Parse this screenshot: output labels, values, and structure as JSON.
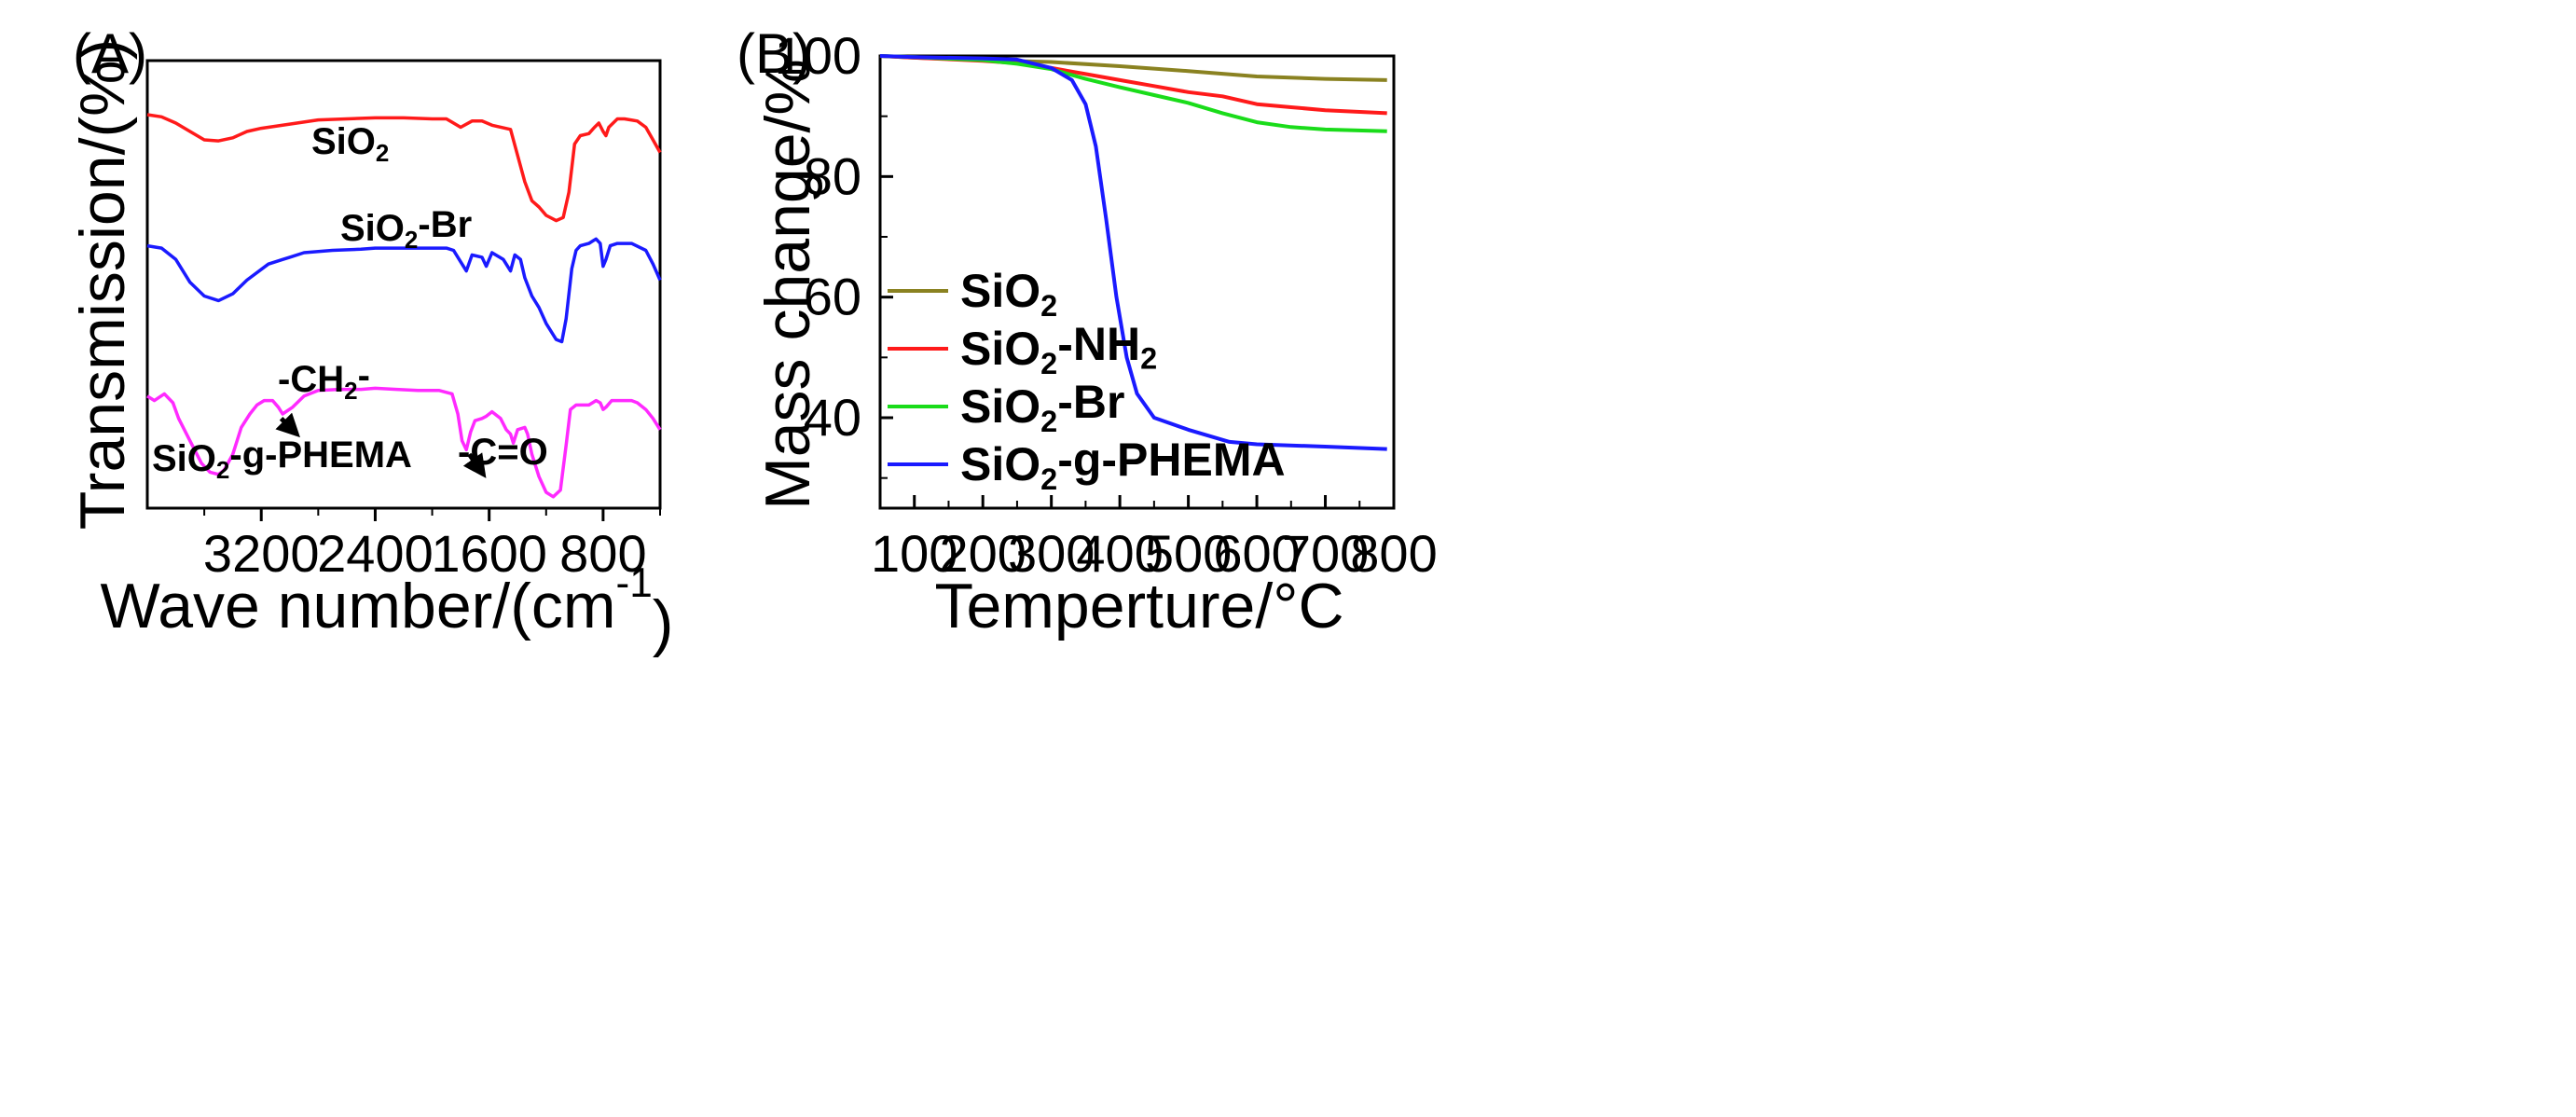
{
  "chart_data": [
    {
      "panel": "(A)",
      "type": "line",
      "xlabel_prefix": "Wave number/(cm",
      "xlabel_sup": "-1",
      "xlabel_suffix": ")",
      "ylabel": "Transmission/(%)",
      "x_reversed": true,
      "xlim": [
        4000,
        400
      ],
      "xticks": [
        3200,
        2400,
        1600,
        800
      ],
      "ylim": [
        0,
        100
      ],
      "series": [
        {
          "name": "SiO2",
          "label_main": "SiO",
          "label_sub": "2",
          "label_tail": "",
          "color": "#ff1a1a",
          "points": [
            [
              4000,
              92
            ],
            [
              3900,
              91
            ],
            [
              3800,
              88
            ],
            [
              3700,
              84
            ],
            [
              3600,
              80
            ],
            [
              3500,
              79.5
            ],
            [
              3400,
              81
            ],
            [
              3300,
              84
            ],
            [
              3200,
              85.5
            ],
            [
              3000,
              87.5
            ],
            [
              2800,
              89.5
            ],
            [
              2600,
              90
            ],
            [
              2400,
              90.5
            ],
            [
              2200,
              90.5
            ],
            [
              2000,
              90
            ],
            [
              1900,
              90
            ],
            [
              1850,
              88
            ],
            [
              1800,
              86
            ],
            [
              1720,
              89
            ],
            [
              1650,
              89
            ],
            [
              1580,
              87
            ],
            [
              1450,
              85
            ],
            [
              1350,
              60
            ],
            [
              1300,
              51
            ],
            [
              1250,
              48
            ],
            [
              1200,
              44
            ],
            [
              1130,
              41.5
            ],
            [
              1080,
              43
            ],
            [
              1040,
              55
            ],
            [
              1000,
              78
            ],
            [
              960,
              82
            ],
            [
              900,
              83
            ],
            [
              860,
              86
            ],
            [
              830,
              88
            ],
            [
              800,
              84
            ],
            [
              780,
              82
            ],
            [
              760,
              86
            ],
            [
              700,
              90
            ],
            [
              650,
              90
            ],
            [
              560,
              89
            ],
            [
              500,
              86
            ],
            [
              450,
              80
            ],
            [
              400,
              74
            ]
          ]
        },
        {
          "name": "SiO2-Br",
          "label_main": "SiO",
          "label_sub": "2",
          "label_tail": "-Br",
          "color": "#1a1aff",
          "points": [
            [
              4000,
              72
            ],
            [
              3900,
              71
            ],
            [
              3800,
              66
            ],
            [
              3700,
              56
            ],
            [
              3600,
              50
            ],
            [
              3500,
              48
            ],
            [
              3400,
              51
            ],
            [
              3300,
              57
            ],
            [
              3150,
              64
            ],
            [
              3050,
              66
            ],
            [
              3000,
              67
            ],
            [
              2900,
              69
            ],
            [
              2700,
              70
            ],
            [
              2500,
              70.5
            ],
            [
              2400,
              71
            ],
            [
              2200,
              71
            ],
            [
              2000,
              71
            ],
            [
              1900,
              71
            ],
            [
              1850,
              70
            ],
            [
              1800,
              65
            ],
            [
              1760,
              61
            ],
            [
              1720,
              68
            ],
            [
              1650,
              67
            ],
            [
              1620,
              63
            ],
            [
              1580,
              69
            ],
            [
              1500,
              66
            ],
            [
              1450,
              61
            ],
            [
              1420,
              68
            ],
            [
              1380,
              66
            ],
            [
              1350,
              58
            ],
            [
              1300,
              50
            ],
            [
              1250,
              45
            ],
            [
              1200,
              38
            ],
            [
              1130,
              31
            ],
            [
              1090,
              30
            ],
            [
              1060,
              40
            ],
            [
              1020,
              62
            ],
            [
              990,
              70
            ],
            [
              960,
              72
            ],
            [
              900,
              73
            ],
            [
              850,
              75
            ],
            [
              820,
              73
            ],
            [
              800,
              63
            ],
            [
              780,
              66
            ],
            [
              750,
              72
            ],
            [
              700,
              73
            ],
            [
              600,
              73
            ],
            [
              500,
              70
            ],
            [
              450,
              64
            ],
            [
              400,
              57
            ]
          ]
        },
        {
          "name": "SiO2-g-PHEMA",
          "label_main": "SiO",
          "label_sub": "2",
          "label_tail": "-g-PHEMA",
          "color": "#ff2aff",
          "points": [
            [
              4000,
              48
            ],
            [
              3950,
              46
            ],
            [
              3880,
              49
            ],
            [
              3820,
              45
            ],
            [
              3780,
              38
            ],
            [
              3700,
              28
            ],
            [
              3620,
              18
            ],
            [
              3560,
              14
            ],
            [
              3500,
              13
            ],
            [
              3460,
              15
            ],
            [
              3400,
              22
            ],
            [
              3340,
              34
            ],
            [
              3280,
              40
            ],
            [
              3230,
              44
            ],
            [
              3180,
              46
            ],
            [
              3120,
              46
            ],
            [
              3080,
              43
            ],
            [
              3050,
              40
            ],
            [
              2980,
              43
            ],
            [
              2900,
              48
            ],
            [
              2800,
              50.5
            ],
            [
              2650,
              51
            ],
            [
              2500,
              51
            ],
            [
              2400,
              51.5
            ],
            [
              2250,
              51
            ],
            [
              2100,
              50.5
            ],
            [
              1950,
              50.5
            ],
            [
              1860,
              49
            ],
            [
              1820,
              40
            ],
            [
              1790,
              28
            ],
            [
              1760,
              24
            ],
            [
              1730,
              32
            ],
            [
              1700,
              37
            ],
            [
              1650,
              38
            ],
            [
              1620,
              39
            ],
            [
              1580,
              41
            ],
            [
              1520,
              38
            ],
            [
              1480,
              33
            ],
            [
              1450,
              31
            ],
            [
              1430,
              27
            ],
            [
              1400,
              33
            ],
            [
              1350,
              34
            ],
            [
              1330,
              31
            ],
            [
              1300,
              22
            ],
            [
              1250,
              12
            ],
            [
              1200,
              5
            ],
            [
              1150,
              3
            ],
            [
              1100,
              6
            ],
            [
              1060,
              26
            ],
            [
              1030,
              42
            ],
            [
              990,
              44
            ],
            [
              950,
              44
            ],
            [
              900,
              44
            ],
            [
              850,
              46
            ],
            [
              820,
              45
            ],
            [
              800,
              42
            ],
            [
              780,
              43
            ],
            [
              740,
              46
            ],
            [
              700,
              46
            ],
            [
              600,
              46
            ],
            [
              560,
              45
            ],
            [
              500,
              42
            ],
            [
              450,
              38
            ],
            [
              400,
              33
            ]
          ]
        }
      ],
      "annotations": [
        {
          "main": "-CH",
          "sub": "2",
          "tail": "-",
          "arrow_from": [
            3060,
            38
          ],
          "arrow_to": [
            2950,
            31
          ]
        },
        {
          "main": "-C=O",
          "sub": "",
          "tail": "",
          "arrow_from": [
            1740,
            22
          ],
          "arrow_to": [
            1640,
            13
          ]
        }
      ]
    },
    {
      "panel": "(B)",
      "type": "line",
      "xlabel": "Temperture/°C",
      "ylabel": "Mass change/%",
      "xlim": [
        50,
        800
      ],
      "ylim": [
        25,
        100
      ],
      "xticks": [
        100,
        200,
        300,
        400,
        500,
        600,
        700,
        800
      ],
      "yticks": [
        40,
        60,
        80,
        100
      ],
      "legend_position": "left-center",
      "series": [
        {
          "name": "SiO2",
          "label_main": "SiO",
          "label_sub": "2",
          "label_tail": "",
          "label_sub2": "",
          "color": "#8a8221",
          "points": [
            [
              50,
              100
            ],
            [
              100,
              99.7
            ],
            [
              200,
              99.3
            ],
            [
              300,
              99
            ],
            [
              400,
              98.3
            ],
            [
              500,
              97.5
            ],
            [
              600,
              96.6
            ],
            [
              700,
              96.2
            ],
            [
              790,
              96
            ]
          ]
        },
        {
          "name": "SiO2-NH2",
          "label_main": "SiO",
          "label_sub": "2",
          "label_tail": "-NH",
          "label_sub2": "2",
          "color": "#ff1a1a",
          "points": [
            [
              50,
              100
            ],
            [
              100,
              99.7
            ],
            [
              200,
              99.2
            ],
            [
              250,
              98.8
            ],
            [
              300,
              98
            ],
            [
              350,
              97
            ],
            [
              400,
              96
            ],
            [
              450,
              95
            ],
            [
              500,
              94
            ],
            [
              550,
              93.3
            ],
            [
              600,
              92
            ],
            [
              650,
              91.5
            ],
            [
              700,
              91
            ],
            [
              790,
              90.5
            ]
          ]
        },
        {
          "name": "SiO2-Br",
          "label_main": "SiO",
          "label_sub": "2",
          "label_tail": "-Br",
          "label_sub2": "",
          "color": "#1adc1a",
          "points": [
            [
              50,
              100
            ],
            [
              100,
              99.8
            ],
            [
              200,
              99.3
            ],
            [
              250,
              98.7
            ],
            [
              300,
              97.8
            ],
            [
              350,
              96.2
            ],
            [
              400,
              94.8
            ],
            [
              450,
              93.5
            ],
            [
              500,
              92.2
            ],
            [
              550,
              90.5
            ],
            [
              600,
              89
            ],
            [
              650,
              88.2
            ],
            [
              700,
              87.8
            ],
            [
              790,
              87.5
            ]
          ]
        },
        {
          "name": "SiO2-g-PHEMA",
          "label_main": "SiO",
          "label_sub": "2",
          "label_tail": "-g-PHEMA",
          "label_sub2": "",
          "color": "#1a1aff",
          "points": [
            [
              50,
              100
            ],
            [
              100,
              99.8
            ],
            [
              200,
              99.6
            ],
            [
              250,
              99.4
            ],
            [
              300,
              98
            ],
            [
              330,
              96
            ],
            [
              350,
              92
            ],
            [
              365,
              85
            ],
            [
              380,
              73
            ],
            [
              395,
              60
            ],
            [
              410,
              50
            ],
            [
              425,
              44
            ],
            [
              450,
              40
            ],
            [
              500,
              38
            ],
            [
              560,
              36
            ],
            [
              600,
              35.6
            ],
            [
              700,
              35.2
            ],
            [
              790,
              34.8
            ]
          ]
        }
      ]
    }
  ]
}
